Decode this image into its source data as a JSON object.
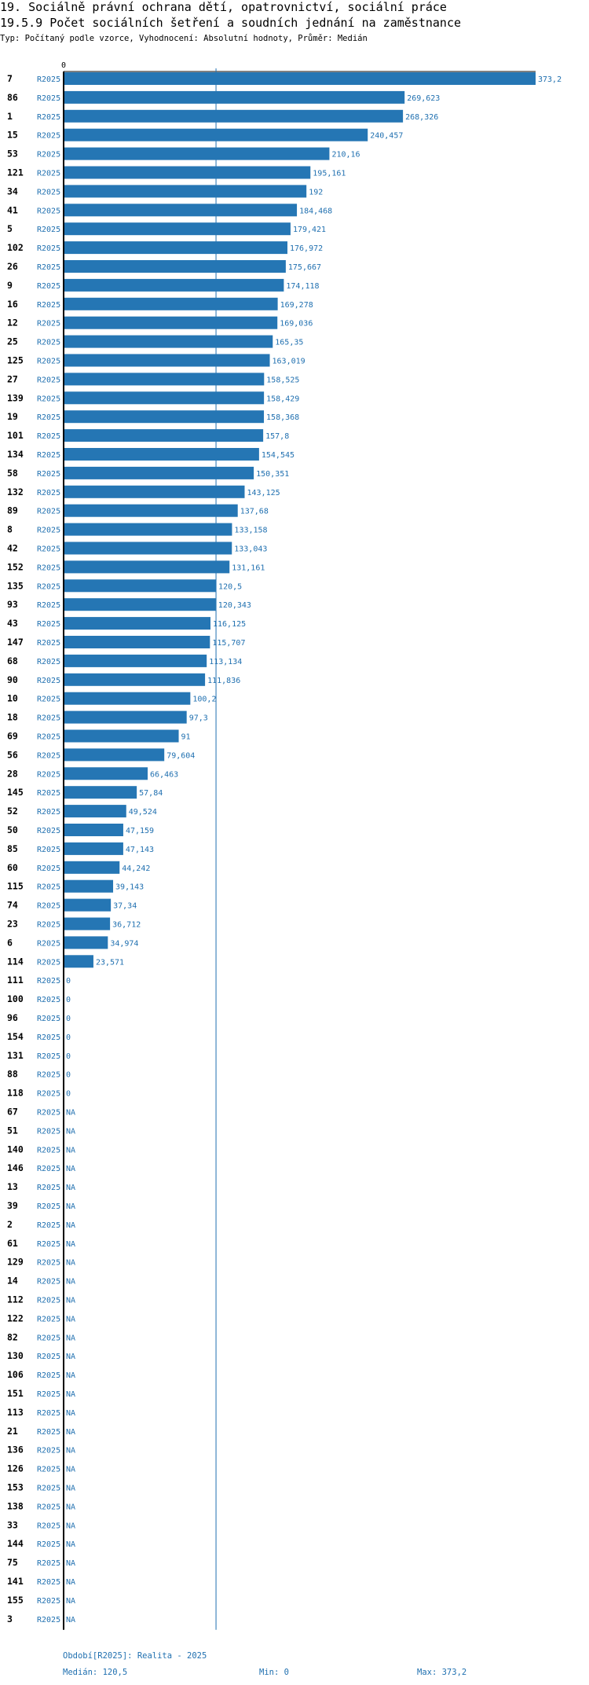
{
  "header": {
    "title_line1": "19. Sociálně právní ochrana dětí, opatrovnictví, sociální práce",
    "title_line2": "19.5.9 Počet sociálních šetření a soudních jednání na zaměstnance",
    "subtitle": "Typ: Počítaný podle vzorce, Vyhodnocení: Absolutní hodnoty, Průměr: Medián"
  },
  "footer": {
    "period": "Období[R2025]: Realita - 2025",
    "median": "Medián: 120,5",
    "min": "Min: 0",
    "max": "Max: 373,2"
  },
  "colors": {
    "bar": "#2576b4",
    "label": "#2070b0",
    "axis": "#000000",
    "median_line": "#2070b0"
  },
  "chart_data": {
    "type": "bar",
    "orientation": "horizontal",
    "title": "19.5.9 Počet sociálních šetření a soudních jednání na zaměstnance",
    "axis_tick_label": "0",
    "xlim": [
      0,
      373.2
    ],
    "median": 120.5,
    "period_label": "R2025",
    "rows": [
      {
        "id": "7",
        "period": "R2025",
        "value": 373.2,
        "label": "373,2"
      },
      {
        "id": "86",
        "period": "R2025",
        "value": 269.623,
        "label": "269,623"
      },
      {
        "id": "1",
        "period": "R2025",
        "value": 268.326,
        "label": "268,326"
      },
      {
        "id": "15",
        "period": "R2025",
        "value": 240.457,
        "label": "240,457"
      },
      {
        "id": "53",
        "period": "R2025",
        "value": 210.16,
        "label": "210,16"
      },
      {
        "id": "121",
        "period": "R2025",
        "value": 195.161,
        "label": "195,161"
      },
      {
        "id": "34",
        "period": "R2025",
        "value": 192,
        "label": "192"
      },
      {
        "id": "41",
        "period": "R2025",
        "value": 184.468,
        "label": "184,468"
      },
      {
        "id": "5",
        "period": "R2025",
        "value": 179.421,
        "label": "179,421"
      },
      {
        "id": "102",
        "period": "R2025",
        "value": 176.972,
        "label": "176,972"
      },
      {
        "id": "26",
        "period": "R2025",
        "value": 175.667,
        "label": "175,667"
      },
      {
        "id": "9",
        "period": "R2025",
        "value": 174.118,
        "label": "174,118"
      },
      {
        "id": "16",
        "period": "R2025",
        "value": 169.278,
        "label": "169,278"
      },
      {
        "id": "12",
        "period": "R2025",
        "value": 169.036,
        "label": "169,036"
      },
      {
        "id": "25",
        "period": "R2025",
        "value": 165.35,
        "label": "165,35"
      },
      {
        "id": "125",
        "period": "R2025",
        "value": 163.019,
        "label": "163,019"
      },
      {
        "id": "27",
        "period": "R2025",
        "value": 158.525,
        "label": "158,525"
      },
      {
        "id": "139",
        "period": "R2025",
        "value": 158.429,
        "label": "158,429"
      },
      {
        "id": "19",
        "period": "R2025",
        "value": 158.368,
        "label": "158,368"
      },
      {
        "id": "101",
        "period": "R2025",
        "value": 157.8,
        "label": "157,8"
      },
      {
        "id": "134",
        "period": "R2025",
        "value": 154.545,
        "label": "154,545"
      },
      {
        "id": "58",
        "period": "R2025",
        "value": 150.351,
        "label": "150,351"
      },
      {
        "id": "132",
        "period": "R2025",
        "value": 143.125,
        "label": "143,125"
      },
      {
        "id": "89",
        "period": "R2025",
        "value": 137.68,
        "label": "137,68"
      },
      {
        "id": "8",
        "period": "R2025",
        "value": 133.158,
        "label": "133,158"
      },
      {
        "id": "42",
        "period": "R2025",
        "value": 133.043,
        "label": "133,043"
      },
      {
        "id": "152",
        "period": "R2025",
        "value": 131.161,
        "label": "131,161"
      },
      {
        "id": "135",
        "period": "R2025",
        "value": 120.5,
        "label": "120,5"
      },
      {
        "id": "93",
        "period": "R2025",
        "value": 120.343,
        "label": "120,343"
      },
      {
        "id": "43",
        "period": "R2025",
        "value": 116.125,
        "label": "116,125"
      },
      {
        "id": "147",
        "period": "R2025",
        "value": 115.707,
        "label": "115,707"
      },
      {
        "id": "68",
        "period": "R2025",
        "value": 113.134,
        "label": "113,134"
      },
      {
        "id": "90",
        "period": "R2025",
        "value": 111.836,
        "label": "111,836"
      },
      {
        "id": "10",
        "period": "R2025",
        "value": 100.2,
        "label": "100,2"
      },
      {
        "id": "18",
        "period": "R2025",
        "value": 97.3,
        "label": "97,3"
      },
      {
        "id": "69",
        "period": "R2025",
        "value": 91,
        "label": "91"
      },
      {
        "id": "56",
        "period": "R2025",
        "value": 79.604,
        "label": "79,604"
      },
      {
        "id": "28",
        "period": "R2025",
        "value": 66.463,
        "label": "66,463"
      },
      {
        "id": "145",
        "period": "R2025",
        "value": 57.84,
        "label": "57,84"
      },
      {
        "id": "52",
        "period": "R2025",
        "value": 49.524,
        "label": "49,524"
      },
      {
        "id": "50",
        "period": "R2025",
        "value": 47.159,
        "label": "47,159"
      },
      {
        "id": "85",
        "period": "R2025",
        "value": 47.143,
        "label": "47,143"
      },
      {
        "id": "60",
        "period": "R2025",
        "value": 44.242,
        "label": "44,242"
      },
      {
        "id": "115",
        "period": "R2025",
        "value": 39.143,
        "label": "39,143"
      },
      {
        "id": "74",
        "period": "R2025",
        "value": 37.34,
        "label": "37,34"
      },
      {
        "id": "23",
        "period": "R2025",
        "value": 36.712,
        "label": "36,712"
      },
      {
        "id": "6",
        "period": "R2025",
        "value": 34.974,
        "label": "34,974"
      },
      {
        "id": "114",
        "period": "R2025",
        "value": 23.571,
        "label": "23,571"
      },
      {
        "id": "111",
        "period": "R2025",
        "value": 0,
        "label": "0"
      },
      {
        "id": "100",
        "period": "R2025",
        "value": 0,
        "label": "0"
      },
      {
        "id": "96",
        "period": "R2025",
        "value": 0,
        "label": "0"
      },
      {
        "id": "154",
        "period": "R2025",
        "value": 0,
        "label": "0"
      },
      {
        "id": "131",
        "period": "R2025",
        "value": 0,
        "label": "0"
      },
      {
        "id": "88",
        "period": "R2025",
        "value": 0,
        "label": "0"
      },
      {
        "id": "118",
        "period": "R2025",
        "value": 0,
        "label": "0"
      },
      {
        "id": "67",
        "period": "R2025",
        "value": null,
        "label": "NA"
      },
      {
        "id": "51",
        "period": "R2025",
        "value": null,
        "label": "NA"
      },
      {
        "id": "140",
        "period": "R2025",
        "value": null,
        "label": "NA"
      },
      {
        "id": "146",
        "period": "R2025",
        "value": null,
        "label": "NA"
      },
      {
        "id": "13",
        "period": "R2025",
        "value": null,
        "label": "NA"
      },
      {
        "id": "39",
        "period": "R2025",
        "value": null,
        "label": "NA"
      },
      {
        "id": "2",
        "period": "R2025",
        "value": null,
        "label": "NA"
      },
      {
        "id": "61",
        "period": "R2025",
        "value": null,
        "label": "NA"
      },
      {
        "id": "129",
        "period": "R2025",
        "value": null,
        "label": "NA"
      },
      {
        "id": "14",
        "period": "R2025",
        "value": null,
        "label": "NA"
      },
      {
        "id": "112",
        "period": "R2025",
        "value": null,
        "label": "NA"
      },
      {
        "id": "122",
        "period": "R2025",
        "value": null,
        "label": "NA"
      },
      {
        "id": "82",
        "period": "R2025",
        "value": null,
        "label": "NA"
      },
      {
        "id": "130",
        "period": "R2025",
        "value": null,
        "label": "NA"
      },
      {
        "id": "106",
        "period": "R2025",
        "value": null,
        "label": "NA"
      },
      {
        "id": "151",
        "period": "R2025",
        "value": null,
        "label": "NA"
      },
      {
        "id": "113",
        "period": "R2025",
        "value": null,
        "label": "NA"
      },
      {
        "id": "21",
        "period": "R2025",
        "value": null,
        "label": "NA"
      },
      {
        "id": "136",
        "period": "R2025",
        "value": null,
        "label": "NA"
      },
      {
        "id": "126",
        "period": "R2025",
        "value": null,
        "label": "NA"
      },
      {
        "id": "153",
        "period": "R2025",
        "value": null,
        "label": "NA"
      },
      {
        "id": "138",
        "period": "R2025",
        "value": null,
        "label": "NA"
      },
      {
        "id": "33",
        "period": "R2025",
        "value": null,
        "label": "NA"
      },
      {
        "id": "144",
        "period": "R2025",
        "value": null,
        "label": "NA"
      },
      {
        "id": "75",
        "period": "R2025",
        "value": null,
        "label": "NA"
      },
      {
        "id": "141",
        "period": "R2025",
        "value": null,
        "label": "NA"
      },
      {
        "id": "155",
        "period": "R2025",
        "value": null,
        "label": "NA"
      },
      {
        "id": "3",
        "period": "R2025",
        "value": null,
        "label": "NA"
      }
    ]
  }
}
